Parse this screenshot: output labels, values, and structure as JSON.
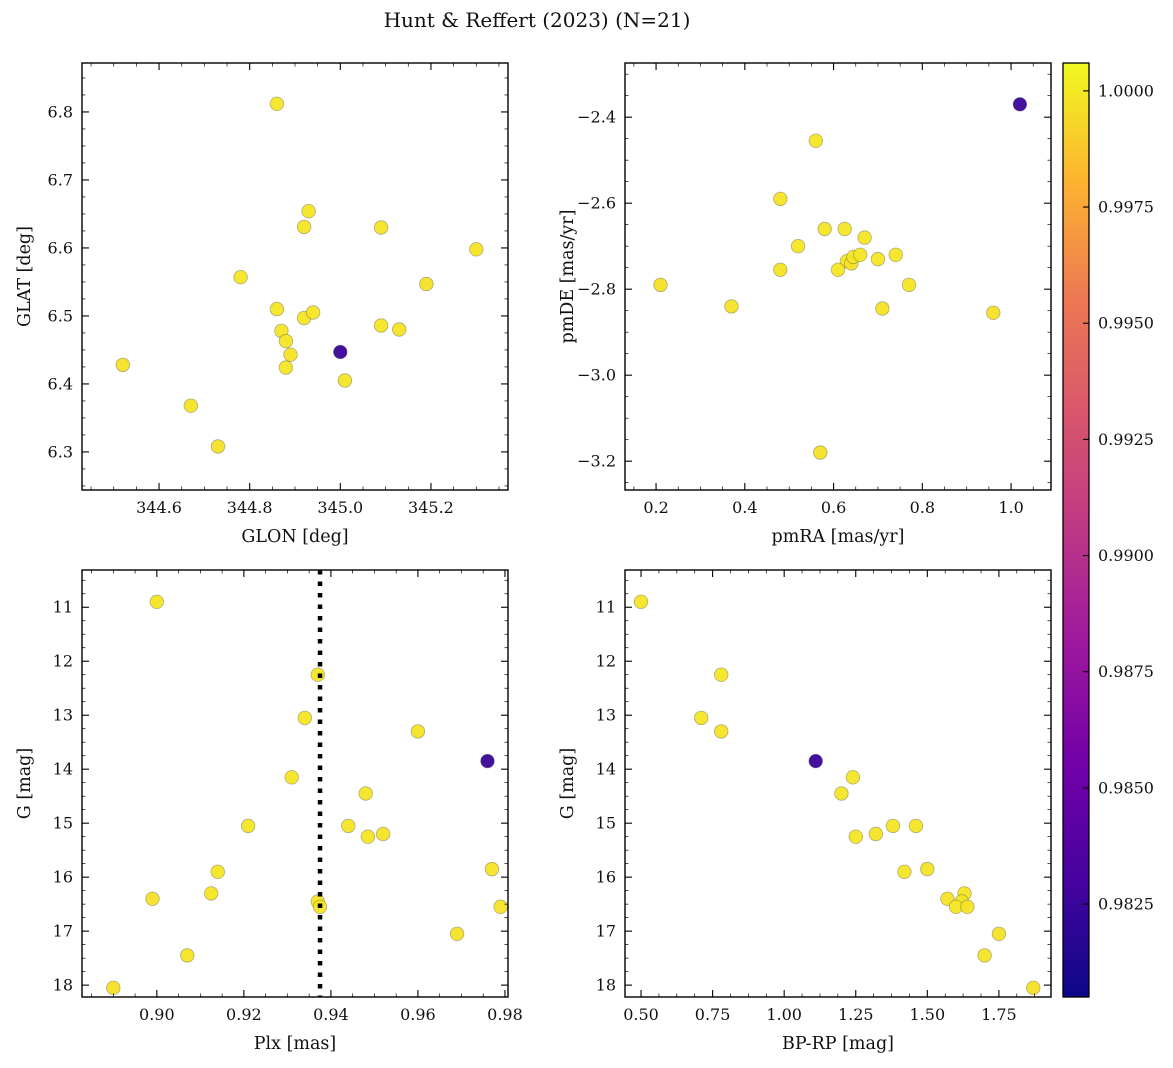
{
  "title": "Hunt & Reffert (2023) (N=21)",
  "chart_data": {
    "type": "scatter",
    "n_stars": 21,
    "color_variable": "membership probability",
    "colormap": "plasma",
    "stars": [
      {
        "glon": 344.86,
        "glat": 6.812,
        "pmra": 0.56,
        "pmde": -2.455,
        "plx": 0.9,
        "g": 10.9,
        "bprp": 0.5,
        "prob": 0.9999
      },
      {
        "glon": 344.92,
        "glat": 6.631,
        "pmra": 0.63,
        "pmde": -2.735,
        "plx": 0.937,
        "g": 12.25,
        "bprp": 0.78,
        "prob": 0.9999
      },
      {
        "glon": 344.93,
        "glat": 6.654,
        "pmra": 0.58,
        "pmde": -2.66,
        "plx": 0.934,
        "g": 13.05,
        "bprp": 0.71,
        "prob": 0.9999
      },
      {
        "glon": 345.09,
        "glat": 6.63,
        "pmra": 0.48,
        "pmde": -2.59,
        "plx": 0.96,
        "g": 13.3,
        "bprp": 0.78,
        "prob": 0.9998
      },
      {
        "glon": 345.0,
        "glat": 6.447,
        "pmra": 1.02,
        "pmde": -2.37,
        "plx": 0.976,
        "g": 13.85,
        "bprp": 1.11,
        "prob": 0.9825
      },
      {
        "glon": 344.78,
        "glat": 6.557,
        "pmra": 0.52,
        "pmde": -2.7,
        "plx": 0.931,
        "g": 14.15,
        "bprp": 1.24,
        "prob": 0.9999
      },
      {
        "glon": 344.86,
        "glat": 6.51,
        "pmra": 0.67,
        "pmde": -2.68,
        "plx": 0.948,
        "g": 14.45,
        "bprp": 1.2,
        "prob": 0.9999
      },
      {
        "glon": 344.87,
        "glat": 6.478,
        "pmra": 0.625,
        "pmde": -2.66,
        "plx": 0.921,
        "g": 15.05,
        "bprp": 1.38,
        "prob": 0.9999
      },
      {
        "glon": 344.88,
        "glat": 6.463,
        "pmra": 0.61,
        "pmde": -2.755,
        "plx": 0.944,
        "g": 15.05,
        "bprp": 1.46,
        "prob": 0.9999
      },
      {
        "glon": 344.89,
        "glat": 6.443,
        "pmra": 0.64,
        "pmde": -2.74,
        "plx": 0.952,
        "g": 15.2,
        "bprp": 1.32,
        "prob": 0.9998
      },
      {
        "glon": 344.88,
        "glat": 6.424,
        "pmra": 0.645,
        "pmde": -2.725,
        "plx": 0.9485,
        "g": 15.25,
        "bprp": 1.25,
        "prob": 0.9999
      },
      {
        "glon": 345.3,
        "glat": 6.598,
        "pmra": 0.37,
        "pmde": -2.84,
        "plx": 0.977,
        "g": 15.85,
        "bprp": 1.5,
        "prob": 0.9998
      },
      {
        "glon": 344.92,
        "glat": 6.497,
        "pmra": 0.66,
        "pmde": -2.72,
        "plx": 0.914,
        "g": 15.9,
        "bprp": 1.42,
        "prob": 0.9999
      },
      {
        "glon": 344.94,
        "glat": 6.505,
        "pmra": 0.7,
        "pmde": -2.73,
        "plx": 0.9125,
        "g": 16.3,
        "bprp": 1.63,
        "prob": 0.9999
      },
      {
        "glon": 344.52,
        "glat": 6.428,
        "pmra": 0.21,
        "pmde": -2.79,
        "plx": 0.899,
        "g": 16.4,
        "bprp": 1.57,
        "prob": 0.9997
      },
      {
        "glon": 345.01,
        "glat": 6.405,
        "pmra": 0.74,
        "pmde": -2.72,
        "plx": 0.937,
        "g": 16.45,
        "bprp": 1.62,
        "prob": 0.9999
      },
      {
        "glon": 345.09,
        "glat": 6.486,
        "pmra": 0.77,
        "pmde": -2.79,
        "plx": 0.9375,
        "g": 16.55,
        "bprp": 1.6,
        "prob": 0.9999
      },
      {
        "glon": 345.13,
        "glat": 6.48,
        "pmra": 0.71,
        "pmde": -2.845,
        "plx": 0.979,
        "g": 16.55,
        "bprp": 1.64,
        "prob": 0.9998
      },
      {
        "glon": 345.19,
        "glat": 6.547,
        "pmra": 0.96,
        "pmde": -2.855,
        "plx": 0.969,
        "g": 17.05,
        "bprp": 1.75,
        "prob": 0.9997
      },
      {
        "glon": 344.67,
        "glat": 6.368,
        "pmra": 0.48,
        "pmde": -2.755,
        "plx": 0.907,
        "g": 17.45,
        "bprp": 1.7,
        "prob": 0.9998
      },
      {
        "glon": 344.73,
        "glat": 6.308,
        "pmra": 0.57,
        "pmde": -3.18,
        "plx": 0.89,
        "g": 18.05,
        "bprp": 1.87,
        "prob": 0.9997
      }
    ],
    "panels": [
      {
        "name": "position",
        "xkey": "glon",
        "ykey": "glat",
        "xlabel": "GLON [deg]",
        "ylabel": "GLAT [deg]",
        "xlim": [
          344.43,
          345.37
        ],
        "ylim": [
          6.244,
          6.872
        ],
        "invert_y": false,
        "xtick_values": [
          344.6,
          344.8,
          345.0,
          345.2
        ],
        "xtick_labels": [
          "344.6",
          "344.8",
          "345.0",
          "345.2"
        ],
        "ytick_values": [
          6.3,
          6.4,
          6.5,
          6.6,
          6.7,
          6.8
        ],
        "ytick_labels": [
          "6.3",
          "6.4",
          "6.5",
          "6.6",
          "6.7",
          "6.8"
        ],
        "x_minor_step": 0.05,
        "y_minor_step": 0.025
      },
      {
        "name": "proper-motion",
        "xkey": "pmra",
        "ykey": "pmde",
        "xlabel": "pmRA [mas/yr]",
        "ylabel": "pmDE [mas/yr]",
        "xlim": [
          0.13,
          1.09
        ],
        "ylim": [
          -3.267,
          -2.274
        ],
        "invert_y": false,
        "xtick_values": [
          0.2,
          0.4,
          0.6,
          0.8,
          1.0
        ],
        "xtick_labels": [
          "0.2",
          "0.4",
          "0.6",
          "0.8",
          "1.0"
        ],
        "ytick_values": [
          -3.2,
          -3.0,
          -2.8,
          -2.6,
          -2.4
        ],
        "ytick_labels": [
          "−3.2",
          "−3.0",
          "−2.8",
          "−2.6",
          "−2.4"
        ],
        "x_minor_step": 0.05,
        "y_minor_step": 0.05
      },
      {
        "name": "parallax-magnitude",
        "xkey": "plx",
        "ykey": "g",
        "xlabel": "Plx [mas]",
        "ylabel": "G [mag]",
        "xlim": [
          0.8828,
          0.9807
        ],
        "ylim": [
          10.31,
          18.22
        ],
        "invert_y": true,
        "xtick_values": [
          0.9,
          0.92,
          0.94,
          0.96,
          0.98
        ],
        "xtick_labels": [
          "0.90",
          "0.92",
          "0.94",
          "0.96",
          "0.98"
        ],
        "ytick_values": [
          11,
          12,
          13,
          14,
          15,
          16,
          17,
          18
        ],
        "ytick_labels": [
          "11",
          "12",
          "13",
          "14",
          "15",
          "16",
          "17",
          "18"
        ],
        "x_minor_step": 0.005,
        "y_minor_step": 0.25,
        "vline_x": 0.9375,
        "vline_style": "dotted"
      },
      {
        "name": "color-magnitude",
        "xkey": "bprp",
        "ykey": "g",
        "xlabel": "BP-RP [mag]",
        "ylabel": "G [mag]",
        "xlim": [
          0.444,
          1.932
        ],
        "ylim": [
          10.31,
          18.22
        ],
        "invert_y": true,
        "xtick_values": [
          0.5,
          0.75,
          1.0,
          1.25,
          1.5,
          1.75
        ],
        "xtick_labels": [
          "0.50",
          "0.75",
          "1.00",
          "1.25",
          "1.50",
          "1.75"
        ],
        "ytick_values": [
          11,
          12,
          13,
          14,
          15,
          16,
          17,
          18
        ],
        "ytick_labels": [
          "11",
          "12",
          "13",
          "14",
          "15",
          "16",
          "17",
          "18"
        ],
        "x_minor_step": 0.0625,
        "y_minor_step": 0.25
      }
    ],
    "colorbar": {
      "vmin": 0.9805,
      "vmax": 1.0006,
      "tick_values": [
        1.0,
        0.9975,
        0.995,
        0.9925,
        0.99,
        0.9875,
        0.985,
        0.9825
      ],
      "tick_labels": [
        "1.0000",
        "0.9975",
        "0.9950",
        "0.9925",
        "0.9900",
        "0.9875",
        "0.9850",
        "0.9825"
      ],
      "colormap_stops": [
        "#0d0887",
        "#46039f",
        "#7201a8",
        "#9c179e",
        "#bd3786",
        "#d8576b",
        "#ed7953",
        "#fdb42f",
        "#f0f921"
      ]
    }
  }
}
